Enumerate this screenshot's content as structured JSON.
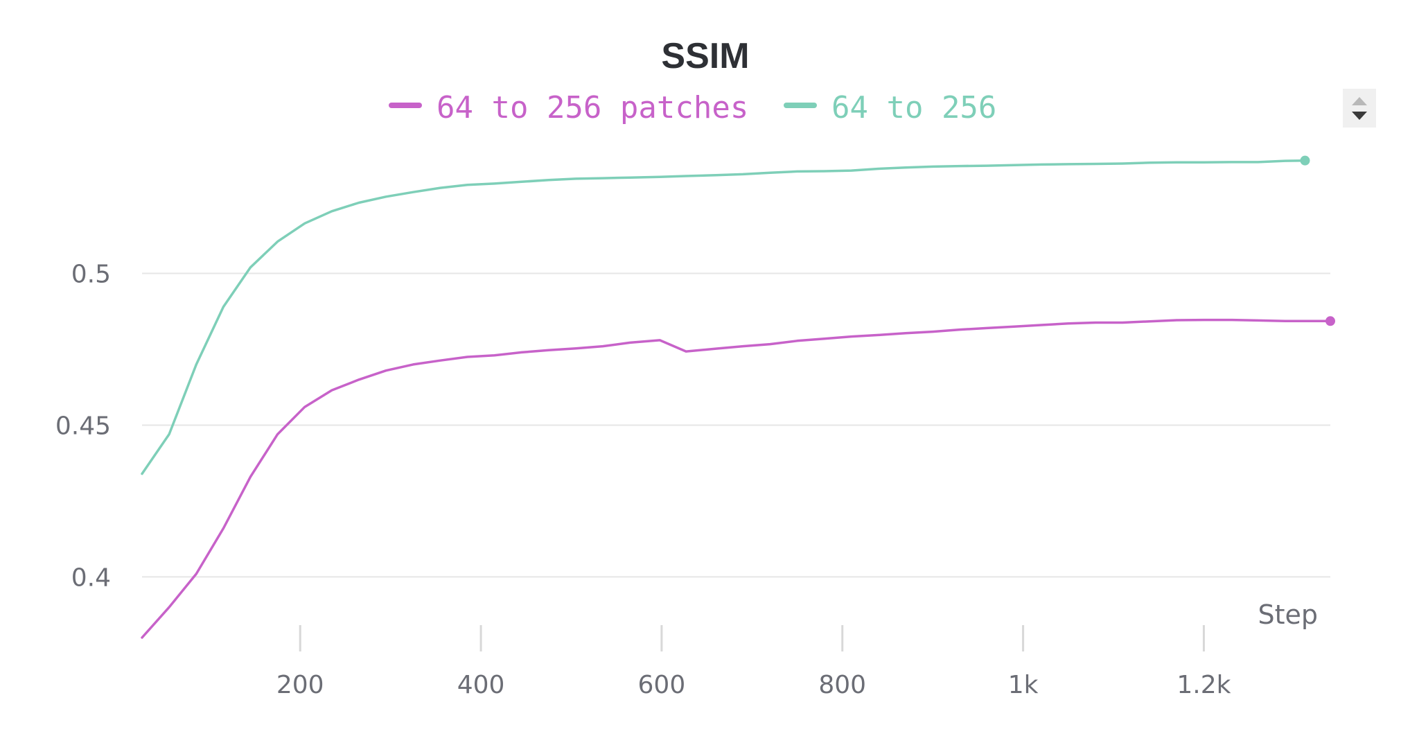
{
  "chart_data": {
    "type": "line",
    "title": "SSIM",
    "xlabel": "Step",
    "ylabel": "",
    "xlim": [
      25,
      1340
    ],
    "ylim": [
      0.38,
      0.549
    ],
    "x_ticks": [
      200,
      400,
      600,
      800,
      1000,
      1200
    ],
    "x_tick_labels": [
      "200",
      "400",
      "600",
      "800",
      "1k",
      "1.2k"
    ],
    "y_ticks": [
      0.4,
      0.45,
      0.5
    ],
    "y_tick_labels": [
      "0.4",
      "0.45",
      "0.5"
    ],
    "grid": true,
    "legend_position": "top-center",
    "series": [
      {
        "name": "64 to 256 patches",
        "color": "#c762c9",
        "x": [
          25,
          55,
          85,
          115,
          145,
          175,
          205,
          235,
          265,
          295,
          325,
          355,
          385,
          415,
          445,
          475,
          505,
          535,
          565,
          598,
          627,
          660,
          690,
          720,
          750,
          780,
          810,
          840,
          870,
          900,
          930,
          960,
          990,
          1020,
          1050,
          1080,
          1110,
          1140,
          1170,
          1200,
          1230,
          1260,
          1290,
          1315,
          1340
        ],
        "y": [
          0.38,
          0.39,
          0.401,
          0.416,
          0.433,
          0.447,
          0.456,
          0.4615,
          0.465,
          0.468,
          0.47,
          0.4713,
          0.4725,
          0.473,
          0.474,
          0.4747,
          0.4753,
          0.476,
          0.4772,
          0.478,
          0.4743,
          0.4752,
          0.476,
          0.4767,
          0.4778,
          0.4785,
          0.4792,
          0.4797,
          0.4803,
          0.4808,
          0.4815,
          0.482,
          0.4825,
          0.483,
          0.4835,
          0.4838,
          0.4838,
          0.4842,
          0.4846,
          0.4847,
          0.4847,
          0.4845,
          0.4843,
          0.4843,
          0.4843
        ]
      },
      {
        "name": "64 to 256",
        "color": "#7ecfb8",
        "x": [
          25,
          55,
          85,
          115,
          145,
          175,
          205,
          235,
          265,
          295,
          325,
          355,
          385,
          415,
          445,
          475,
          505,
          535,
          565,
          598,
          627,
          660,
          690,
          720,
          750,
          780,
          810,
          840,
          870,
          900,
          930,
          960,
          990,
          1020,
          1050,
          1080,
          1110,
          1140,
          1170,
          1200,
          1230,
          1260,
          1290,
          1312
        ],
        "y": [
          0.434,
          0.447,
          0.47,
          0.489,
          0.502,
          0.5105,
          0.5165,
          0.5205,
          0.5233,
          0.5253,
          0.5268,
          0.5282,
          0.5292,
          0.5296,
          0.5302,
          0.5308,
          0.5312,
          0.5314,
          0.5316,
          0.5318,
          0.5321,
          0.5324,
          0.5327,
          0.5332,
          0.5336,
          0.5337,
          0.5339,
          0.5345,
          0.5349,
          0.5352,
          0.5354,
          0.5355,
          0.5357,
          0.5359,
          0.536,
          0.5361,
          0.5362,
          0.5365,
          0.5366,
          0.5366,
          0.5367,
          0.5367,
          0.5371,
          0.5372
        ]
      }
    ]
  }
}
